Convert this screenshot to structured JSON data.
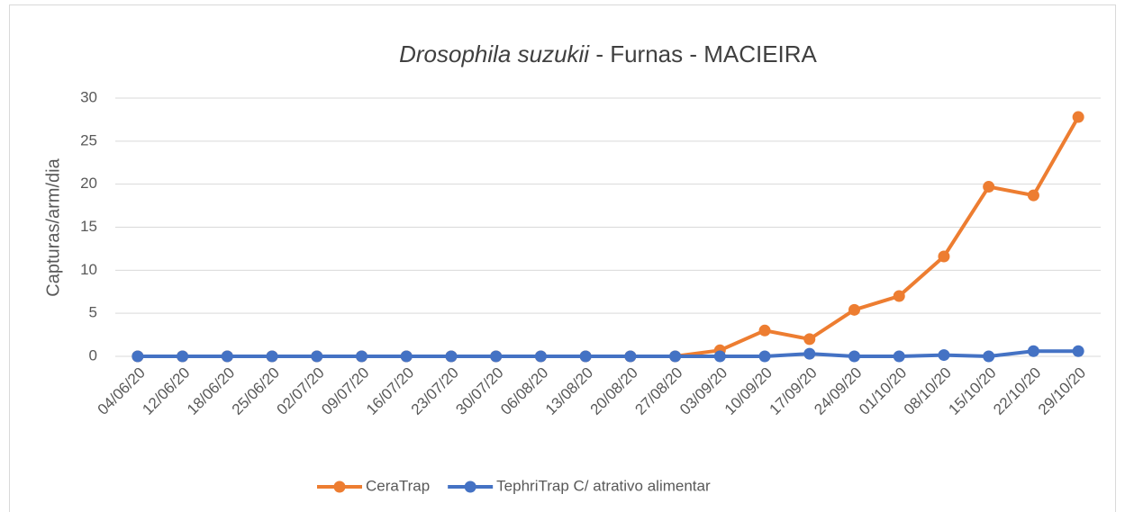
{
  "chart_data": {
    "type": "line",
    "title": {
      "species": "Drosophila suzukii",
      "rest": "- Furnas - MACIEIRA"
    },
    "ylabel": "Capturas/arm/dia",
    "categories": [
      "04/06/20",
      "12/06/20",
      "18/06/20",
      "25/06/20",
      "02/07/20",
      "09/07/20",
      "16/07/20",
      "23/07/20",
      "30/07/20",
      "06/08/20",
      "13/08/20",
      "20/08/20",
      "27/08/20",
      "03/09/20",
      "10/09/20",
      "17/09/20",
      "24/09/20",
      "01/10/20",
      "08/10/20",
      "15/10/20",
      "22/10/20",
      "29/10/20"
    ],
    "series": [
      {
        "name": "CeraTrap",
        "color": "#ed7d31",
        "values": [
          0,
          0,
          0,
          0,
          0,
          0,
          0,
          0,
          0,
          0,
          0,
          0,
          0,
          0.7,
          3.0,
          2.0,
          5.4,
          7.0,
          11.6,
          19.7,
          18.7,
          27.8
        ]
      },
      {
        "name": "TephriTrap C/ atrativo alimentar",
        "color": "#4472c4",
        "values": [
          0,
          0,
          0,
          0,
          0,
          0,
          0,
          0,
          0,
          0,
          0,
          0,
          0,
          0,
          0,
          0.3,
          0,
          0,
          0.15,
          0,
          0.6,
          0.6
        ]
      }
    ],
    "ylim": [
      0,
      30
    ],
    "yticks": [
      0,
      5,
      10,
      15,
      20,
      25,
      30
    ],
    "grid": true,
    "legend": "bottom"
  }
}
